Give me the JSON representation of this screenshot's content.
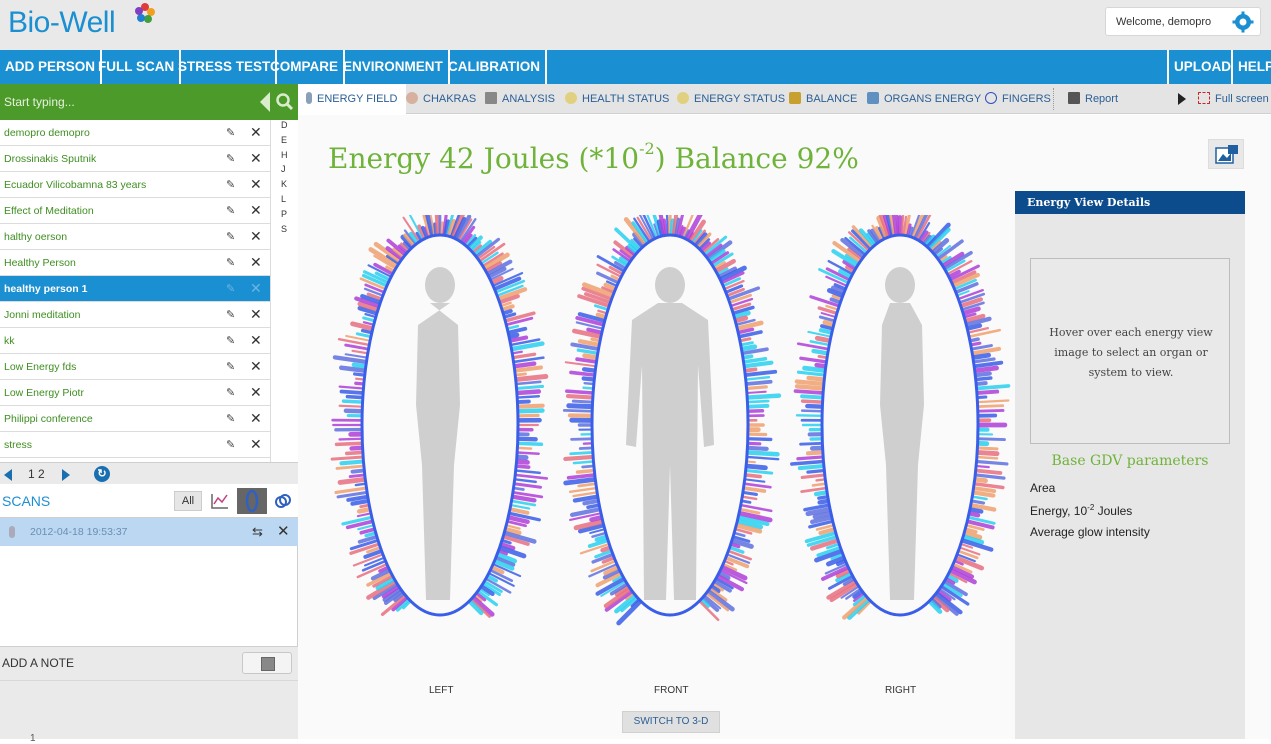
{
  "header": {
    "logo_text": "Bio-Well",
    "welcome": "Welcome, demopro"
  },
  "nav": {
    "items": [
      "ADD PERSON",
      "FULL SCAN",
      "STRESS TEST",
      "COMPARE",
      "ENVIRONMENT",
      "CALIBRATION"
    ],
    "right_items": [
      "UPLOAD",
      "HELP"
    ]
  },
  "search": {
    "placeholder": "Start typing..."
  },
  "people": [
    "demopro demopro",
    "Drossinakis Sputnik",
    "Ecuador Vilicobamna 83 years",
    "Effect of Meditation",
    "halthy oerson",
    "Healthy Person",
    "healthy person 1",
    "Jonni meditation",
    "kk",
    "Low Energy fds",
    "Low Energy Piotr",
    "Philippi conference",
    "stress"
  ],
  "alphabet": [
    "D",
    "E",
    "H",
    "J",
    "K",
    "L",
    "P",
    "S"
  ],
  "pager": {
    "pages": "1 2"
  },
  "scans": {
    "title": "SCANS",
    "all_label": "All",
    "items": [
      {
        "timestamp": "2012-04-18 19:53:37"
      }
    ]
  },
  "note": {
    "label": "ADD A NOTE",
    "pager": "1"
  },
  "tabs": [
    {
      "label": "ENERGY FIELD",
      "icon": "person-icon",
      "color": "#8aa0b8"
    },
    {
      "label": "CHAKRAS",
      "icon": "lotus-icon",
      "color": "#d8b0a0"
    },
    {
      "label": "ANALYSIS",
      "icon": "list-icon",
      "color": "#888888"
    },
    {
      "label": "HEALTH STATUS",
      "icon": "circle-icon",
      "color": "#e0d080"
    },
    {
      "label": "ENERGY STATUS",
      "icon": "circle-icon",
      "color": "#e0d080"
    },
    {
      "label": "BALANCE",
      "icon": "scales-icon",
      "color": "#c8a030"
    },
    {
      "label": "ORGANS ENERGY",
      "icon": "organs-icon",
      "color": "#6090c0"
    },
    {
      "label": "FINGERS",
      "icon": "ring-icon",
      "color": "#3050c0"
    },
    {
      "label": "Report",
      "icon": "printer-icon",
      "color": "#555555"
    },
    {
      "label": "Full screen",
      "icon": "fullscreen-icon",
      "color": "#cc2222"
    }
  ],
  "headline": {
    "prefix": "Energy 42 Joules (*10",
    "exponent": "-2",
    "suffix": ") Balance 92%"
  },
  "views": [
    "LEFT",
    "FRONT",
    "RIGHT"
  ],
  "switch_3d": "SWITCH TO 3-D",
  "details": {
    "title": "Energy View Details",
    "hint": "Hover over each energy view image to select an organ or system to view.",
    "gdv_title": "Base GDV parameters",
    "params": [
      "Area",
      "Energy, 10",
      "Average glow intensity"
    ],
    "energy_exponent": "-2",
    "energy_unit": " Joules"
  },
  "colors": {
    "nav_blue": "#1a8fd1",
    "search_green": "#4c9a2a",
    "headline_green": "#6fb33a",
    "details_head": "#0d4c8c"
  }
}
